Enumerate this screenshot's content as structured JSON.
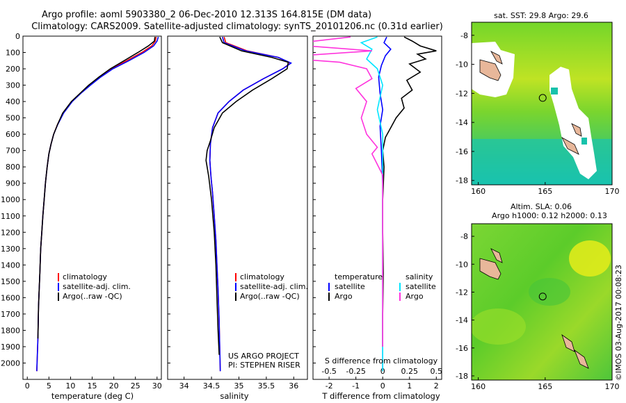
{
  "title": {
    "line1": "Argo profile: aoml 5903380_2 06-Dec-2010 12.313S 164.815E (DM data)",
    "line2": "Climatology: CARS2009. Satellite-adjusted climatology: synTS_20101206.nc (0.31d earlier)"
  },
  "colors": {
    "climatology": "#ff0000",
    "satellite": "#0000ff",
    "argo": "#000000",
    "salinity_satellite": "#00e5ff",
    "salinity_argo": "#ff33dd",
    "land": "#e8b79a",
    "sea_green": "#6cd12a",
    "sea_cyan": "#11c7b0",
    "sea_yellow": "#e5ec1a"
  },
  "chart_data": [
    {
      "type": "line",
      "id": "temperature",
      "xlabel": "temperature (deg C)",
      "ylabel": "",
      "xlim": [
        -1,
        31
      ],
      "ylim": [
        2100,
        0
      ],
      "xticks": [
        "0",
        "5",
        "10",
        "15",
        "20",
        "25",
        "30"
      ],
      "yticks": [
        "0",
        "100",
        "200",
        "300",
        "400",
        "500",
        "600",
        "700",
        "800",
        "900",
        "1000",
        "1100",
        "1200",
        "1300",
        "1400",
        "1500",
        "1600",
        "1700",
        "1800",
        "1900",
        "2000"
      ],
      "legend": [
        "climatology",
        "satellite-adj. clim.",
        "Argo(..raw -QC)"
      ],
      "series": [
        {
          "name": "climatology",
          "color_key": "climatology",
          "x": [
            29.8,
            29.6,
            28.8,
            26.5,
            23,
            19.5,
            16.8,
            14.4,
            12.3,
            10.3,
            8.3,
            7,
            6.1,
            5.5,
            5,
            4.6,
            4.2,
            3.9,
            3.6,
            3.35,
            3.1,
            2.9,
            2.6,
            2.45,
            2.2
          ],
          "y": [
            5,
            30,
            60,
            100,
            150,
            200,
            250,
            300,
            350,
            400,
            470,
            540,
            600,
            660,
            720,
            800,
            900,
            1000,
            1100,
            1200,
            1300,
            1450,
            1650,
            1850,
            2050
          ]
        },
        {
          "name": "satellite-adj. clim.",
          "color_key": "satellite",
          "x": [
            30.3,
            30,
            29.2,
            27,
            23.5,
            19.8,
            17,
            14.6,
            12.4,
            10.4,
            8.4,
            7.05,
            6.1,
            5.5,
            5,
            4.6,
            4.2,
            3.9,
            3.6,
            3.35,
            3.1,
            2.9,
            2.6,
            2.45,
            2.2
          ],
          "y": [
            5,
            30,
            60,
            100,
            150,
            200,
            250,
            300,
            350,
            400,
            470,
            540,
            600,
            660,
            720,
            800,
            900,
            1000,
            1100,
            1200,
            1300,
            1450,
            1650,
            1850,
            2050
          ]
        },
        {
          "name": "Argo(..raw -QC)",
          "color_key": "argo",
          "x": [
            29.5,
            29.4,
            28,
            25.6,
            22.4,
            19.2,
            16.6,
            14.2,
            12.2,
            10.2,
            8.2,
            7,
            6.1,
            5.5,
            5,
            4.6,
            4.2,
            3.9,
            3.6,
            3.35,
            3.1,
            2.9,
            2.6,
            2.45
          ],
          "y": [
            5,
            30,
            60,
            100,
            150,
            200,
            250,
            300,
            350,
            400,
            470,
            540,
            600,
            660,
            720,
            800,
            900,
            1000,
            1100,
            1200,
            1300,
            1450,
            1650,
            1850
          ]
        }
      ]
    },
    {
      "type": "line",
      "id": "salinity",
      "xlabel": "salinity",
      "xlim": [
        33.7,
        36.25
      ],
      "ylim": [
        2100,
        0
      ],
      "xticks": [
        "34",
        "34.5",
        "35",
        "35.5",
        "36"
      ],
      "legend": [
        "climatology",
        "satellite-adj. clim.",
        "Argo(..raw -QC)"
      ],
      "annotation": [
        "US ARGO PROJECT",
        "PI: STEPHEN RISER"
      ],
      "series": [
        {
          "name": "climatology",
          "color_key": "climatology",
          "x": [
            34.73,
            34.76,
            35.15,
            35.72,
            35.94,
            35.8,
            35.45,
            35.08,
            34.82,
            34.62,
            34.52,
            34.48,
            34.47,
            34.49,
            34.52,
            34.55,
            34.58,
            34.6,
            34.62,
            34.64,
            34.65,
            34.66
          ],
          "y": [
            5,
            40,
            90,
            130,
            165,
            200,
            260,
            330,
            400,
            470,
            560,
            660,
            760,
            860,
            960,
            1100,
            1250,
            1400,
            1550,
            1750,
            1900,
            2050
          ]
        },
        {
          "name": "satellite-adj. clim.",
          "color_key": "satellite",
          "x": [
            34.7,
            34.73,
            35.12,
            35.72,
            35.95,
            35.8,
            35.45,
            35.08,
            34.82,
            34.62,
            34.52,
            34.48,
            34.47,
            34.49,
            34.52,
            34.55,
            34.58,
            34.6,
            34.62,
            34.64,
            34.65,
            34.66
          ],
          "y": [
            5,
            40,
            90,
            130,
            165,
            200,
            260,
            330,
            400,
            470,
            560,
            660,
            760,
            860,
            960,
            1100,
            1250,
            1400,
            1550,
            1750,
            1900,
            2050
          ]
        },
        {
          "name": "Argo(..raw -QC)",
          "color_key": "argo",
          "x": [
            34.65,
            34.7,
            35.05,
            35.6,
            35.9,
            35.88,
            35.6,
            35.25,
            34.95,
            34.7,
            34.55,
            34.48,
            34.42,
            34.4,
            34.45,
            34.5,
            34.55,
            34.58,
            34.6,
            34.62,
            34.64
          ],
          "y": [
            5,
            40,
            90,
            130,
            160,
            200,
            260,
            330,
            400,
            470,
            560,
            640,
            700,
            760,
            860,
            1000,
            1200,
            1400,
            1600,
            1800,
            1950
          ]
        }
      ]
    },
    {
      "type": "line",
      "id": "difference",
      "xlabel_bottom": "T difference from climatology",
      "xlabel_top": "S difference from climatology",
      "xlim_T": [
        -2.6,
        2.2
      ],
      "ylim": [
        2100,
        0
      ],
      "xticks_T": [
        "-2",
        "-1",
        "0",
        "1",
        "2"
      ],
      "xticks_S": [
        "-0.5",
        "-0.25",
        "0",
        "0.25",
        "0.5"
      ],
      "legend_temperature": {
        "heading": "temperature",
        "items": [
          "satellite",
          "Argo"
        ]
      },
      "legend_salinity": {
        "heading": "salinity",
        "items": [
          "satellite",
          "Argo"
        ]
      },
      "series": [
        {
          "name": "temperature satellite",
          "color_key": "satellite",
          "x": [
            0.15,
            0.05,
            0.3,
            0.1,
            -0.05,
            -0.15,
            -0.1,
            0,
            -0.1,
            -0.05,
            0,
            0,
            0,
            0,
            0
          ],
          "y": [
            5,
            40,
            80,
            120,
            180,
            250,
            350,
            450,
            550,
            700,
            900,
            1200,
            1500,
            1800,
            2050
          ]
        },
        {
          "name": "temperature Argo",
          "color_key": "argo",
          "x": [
            0.8,
            1.1,
            1.4,
            2.0,
            1.3,
            1.6,
            1.0,
            1.4,
            0.9,
            1.1,
            0.7,
            0.8,
            0.5,
            0.3,
            0.1,
            0,
            0.05,
            0,
            0,
            0.02,
            0,
            0
          ],
          "y": [
            5,
            30,
            60,
            90,
            110,
            140,
            170,
            220,
            270,
            330,
            380,
            440,
            500,
            560,
            620,
            700,
            800,
            1000,
            1200,
            1450,
            1700,
            1900
          ]
        },
        {
          "name": "salinity satellite",
          "color_key": "salinity_satellite",
          "x": [
            -0.05,
            -0.2,
            -0.1,
            -0.15,
            -0.05,
            0,
            -0.05,
            0,
            0,
            0,
            0,
            0,
            0
          ],
          "y": [
            5,
            40,
            80,
            140,
            200,
            300,
            450,
            600,
            800,
            1100,
            1400,
            1700,
            2050
          ]
        },
        {
          "name": "salinity Argo",
          "color_key": "salinity_argo",
          "x": [
            -0.3,
            -0.9,
            -0.1,
            -1.0,
            -0.4,
            -0.15,
            -0.1,
            -0.25,
            -0.15,
            -0.2,
            -0.15,
            -0.05,
            -0.1,
            0,
            0,
            0,
            0
          ],
          "y": [
            5,
            50,
            90,
            130,
            160,
            200,
            260,
            320,
            400,
            500,
            600,
            680,
            720,
            850,
            1100,
            1500,
            1900
          ]
        }
      ]
    },
    {
      "type": "heatmap",
      "id": "sst_map",
      "title": "sat. SST: 29.8 Argo: 29.6",
      "xticks": [
        "160",
        "165",
        "170"
      ],
      "yticks": [
        "-8",
        "-10",
        "-12",
        "-14",
        "-16",
        "-18"
      ],
      "xlim": [
        159.5,
        170
      ],
      "ylim": [
        -18.3,
        -7.1
      ],
      "argo_position": {
        "lon": 164.815,
        "lat": -12.313
      }
    },
    {
      "type": "heatmap",
      "id": "sla_map",
      "title_line1": "Altim. SLA: 0.06",
      "title_line2": "Argo h1000: 0.12 h2000: 0.13",
      "xticks": [
        "160",
        "165",
        "170"
      ],
      "yticks": [
        "-8",
        "-10",
        "-12",
        "-14",
        "-16",
        "-18"
      ],
      "xlim": [
        159.5,
        170
      ],
      "ylim": [
        -18.3,
        -7.1
      ],
      "argo_position": {
        "lon": 164.815,
        "lat": -12.313
      }
    }
  ],
  "watermark": "©IMOS 03-Aug-2017 00:08:23"
}
